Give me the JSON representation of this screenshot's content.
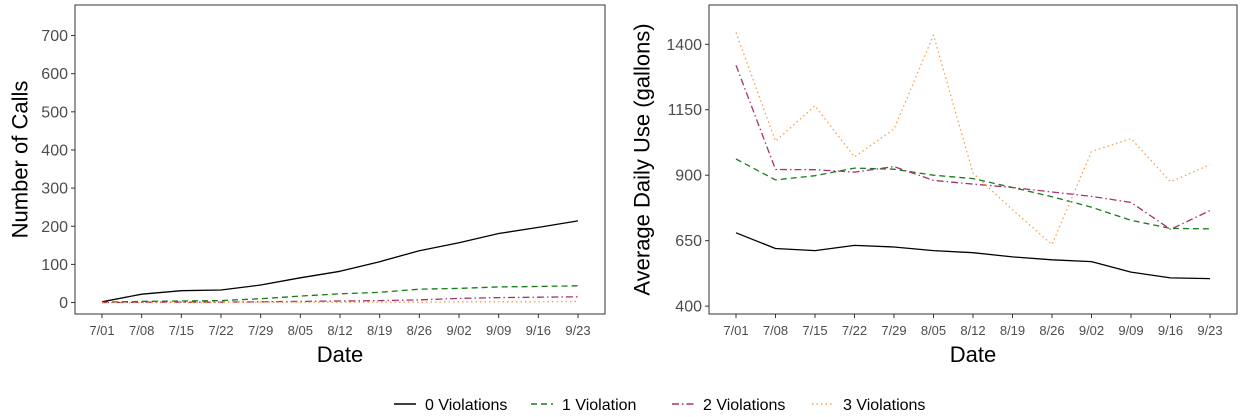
{
  "chart_data": [
    {
      "type": "line",
      "xlabel": "Date",
      "ylabel": "Number of Calls",
      "categories": [
        "7/01",
        "7/08",
        "7/15",
        "7/22",
        "7/29",
        "8/05",
        "8/12",
        "8/19",
        "8/26",
        "9/02",
        "9/09",
        "9/16",
        "9/23"
      ],
      "yticks": [
        0,
        100,
        200,
        300,
        400,
        500,
        600,
        700
      ],
      "ylim": [
        -30,
        780
      ],
      "grid": false,
      "series": [
        {
          "name": "0 Violations",
          "color": "#000000",
          "dash": "solid",
          "values": [
            2,
            22,
            31,
            33,
            46,
            65,
            82,
            107,
            136,
            157,
            181,
            197,
            214
          ]
        },
        {
          "name": "1 Violation",
          "color": "#1b7a1b",
          "dash": "dashed",
          "values": [
            1,
            3,
            4,
            5,
            10,
            17,
            23,
            27,
            35,
            37,
            41,
            42,
            44
          ]
        },
        {
          "name": "2 Violations",
          "color": "#a8326e",
          "dash": "dashdot",
          "values": [
            0,
            1,
            1,
            1,
            2,
            3,
            4,
            5,
            7,
            11,
            13,
            14,
            15
          ]
        },
        {
          "name": "3 Violations",
          "color": "#f5a04a",
          "dash": "dotted",
          "values": [
            0,
            0,
            0,
            0,
            1,
            1,
            1,
            1,
            1,
            2,
            2,
            2,
            3
          ]
        }
      ]
    },
    {
      "type": "line",
      "xlabel": "Date",
      "ylabel": "Average Daily Use (gallons)",
      "categories": [
        "7/01",
        "7/08",
        "7/15",
        "7/22",
        "7/29",
        "8/05",
        "8/12",
        "8/19",
        "8/26",
        "9/02",
        "9/09",
        "9/16",
        "9/23"
      ],
      "yticks": [
        400,
        650,
        900,
        1150,
        1400
      ],
      "ylim": [
        370,
        1550
      ],
      "grid": false,
      "series": [
        {
          "name": "0 Violations",
          "color": "#000000",
          "dash": "solid",
          "values": [
            680,
            620,
            612,
            632,
            626,
            612,
            604,
            588,
            577,
            570,
            530,
            508,
            505
          ]
        },
        {
          "name": "1 Violation",
          "color": "#1b7a1b",
          "dash": "dashed",
          "values": [
            962,
            882,
            898,
            927,
            923,
            900,
            887,
            853,
            818,
            778,
            728,
            697,
            695
          ]
        },
        {
          "name": "2 Violations",
          "color": "#a8326e",
          "dash": "dashdot",
          "values": [
            1320,
            922,
            921,
            912,
            933,
            880,
            866,
            853,
            836,
            819,
            796,
            693,
            765
          ]
        },
        {
          "name": "3 Violations",
          "color": "#f5a04a",
          "dash": "dotted",
          "values": [
            1445,
            1030,
            1165,
            970,
            1076,
            1435,
            908,
            768,
            635,
            990,
            1040,
            875,
            940
          ]
        }
      ]
    }
  ],
  "legend": {
    "position": "bottom",
    "items": [
      "0 Violations",
      "1 Violation",
      "2 Violations",
      "3 Violations"
    ]
  }
}
